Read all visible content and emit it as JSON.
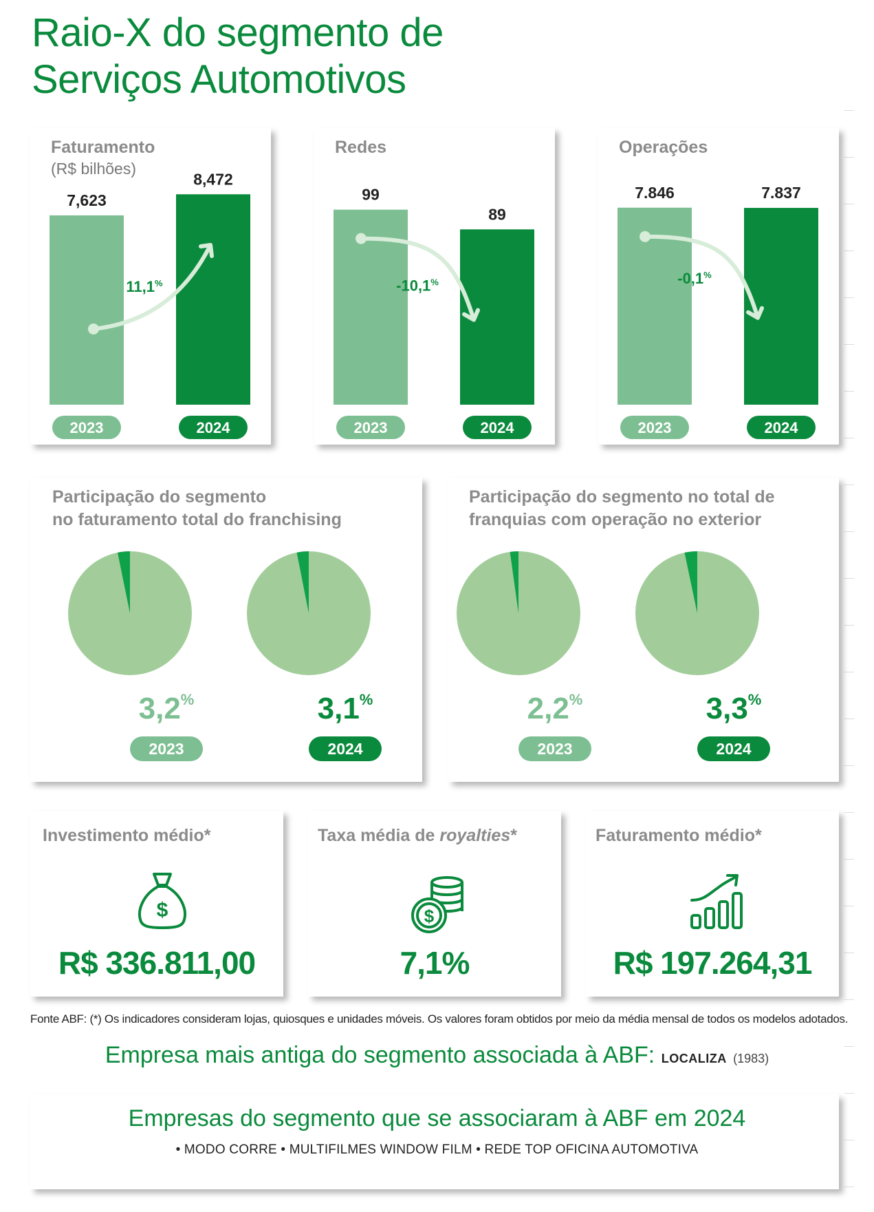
{
  "title": {
    "line1": "Raio-X do segmento de",
    "line2": "Serviços Automotivos"
  },
  "colors": {
    "light": "#7dbf92",
    "dark": "#0a8a3c",
    "pie_bg": "#a2cd9a",
    "pie_slice": "#0fa04a",
    "arrow": "#d7ecd9"
  },
  "chart_data": [
    {
      "type": "bar",
      "title": "Faturamento",
      "subtitle": "(R$ bilhões)",
      "categories": [
        "2023",
        "2024"
      ],
      "values": [
        7.623,
        8.472
      ],
      "value_labels": [
        "7,623",
        "8,472"
      ],
      "change_label": "11,1",
      "change_unit": "%",
      "change_direction": "up"
    },
    {
      "type": "bar",
      "title": "Redes",
      "categories": [
        "2023",
        "2024"
      ],
      "values": [
        99,
        89
      ],
      "value_labels": [
        "99",
        "89"
      ],
      "change_label": "-10,1",
      "change_unit": "%",
      "change_direction": "down"
    },
    {
      "type": "bar",
      "title": "Operações",
      "categories": [
        "2023",
        "2024"
      ],
      "values": [
        7846,
        7837
      ],
      "value_labels": [
        "7.846",
        "7.837"
      ],
      "change_label": "-0,1",
      "change_unit": "%",
      "change_direction": "down"
    },
    {
      "type": "pie",
      "title_line1": "Participação do segmento",
      "title_line2": "no faturamento total do franchising",
      "categories": [
        "2023",
        "2024"
      ],
      "values": [
        3.2,
        3.1
      ],
      "value_labels": [
        "3,2",
        "3,1"
      ],
      "unit": "%"
    },
    {
      "type": "pie",
      "title_line1": "Participação do segmento no total de",
      "title_line2": "franquias com operação no exterior",
      "categories": [
        "2023",
        "2024"
      ],
      "values": [
        2.2,
        3.3
      ],
      "value_labels": [
        "2,2",
        "3,3"
      ],
      "unit": "%"
    }
  ],
  "kpis": [
    {
      "title": "Investimento médio*",
      "icon": "money-bag-icon",
      "value": "R$ 336.811,00"
    },
    {
      "title_prefix": "Taxa média de ",
      "title_italic": "royalties",
      "title_suffix": "*",
      "icon": "coins-icon",
      "value": "7,1%"
    },
    {
      "title": "Faturamento médio*",
      "icon": "growth-chart-icon",
      "value": "R$ 197.264,31"
    }
  ],
  "footnote": "Fonte ABF: (*) Os indicadores consideram lojas, quiosques e unidades móveis. Os valores foram obtidos por meio da média mensal de todos os modelos adotados.",
  "oldest": {
    "label": "Empresa mais antiga do segmento associada à ABF:",
    "company": "LOCALIZA",
    "year": "(1983)"
  },
  "associated": {
    "title": "Empresas do segmento que se associaram à ABF em 2024",
    "list": "• MODO CORRE • MULTIFILMES WINDOW FILM • REDE TOP OFICINA AUTOMOTIVA"
  }
}
